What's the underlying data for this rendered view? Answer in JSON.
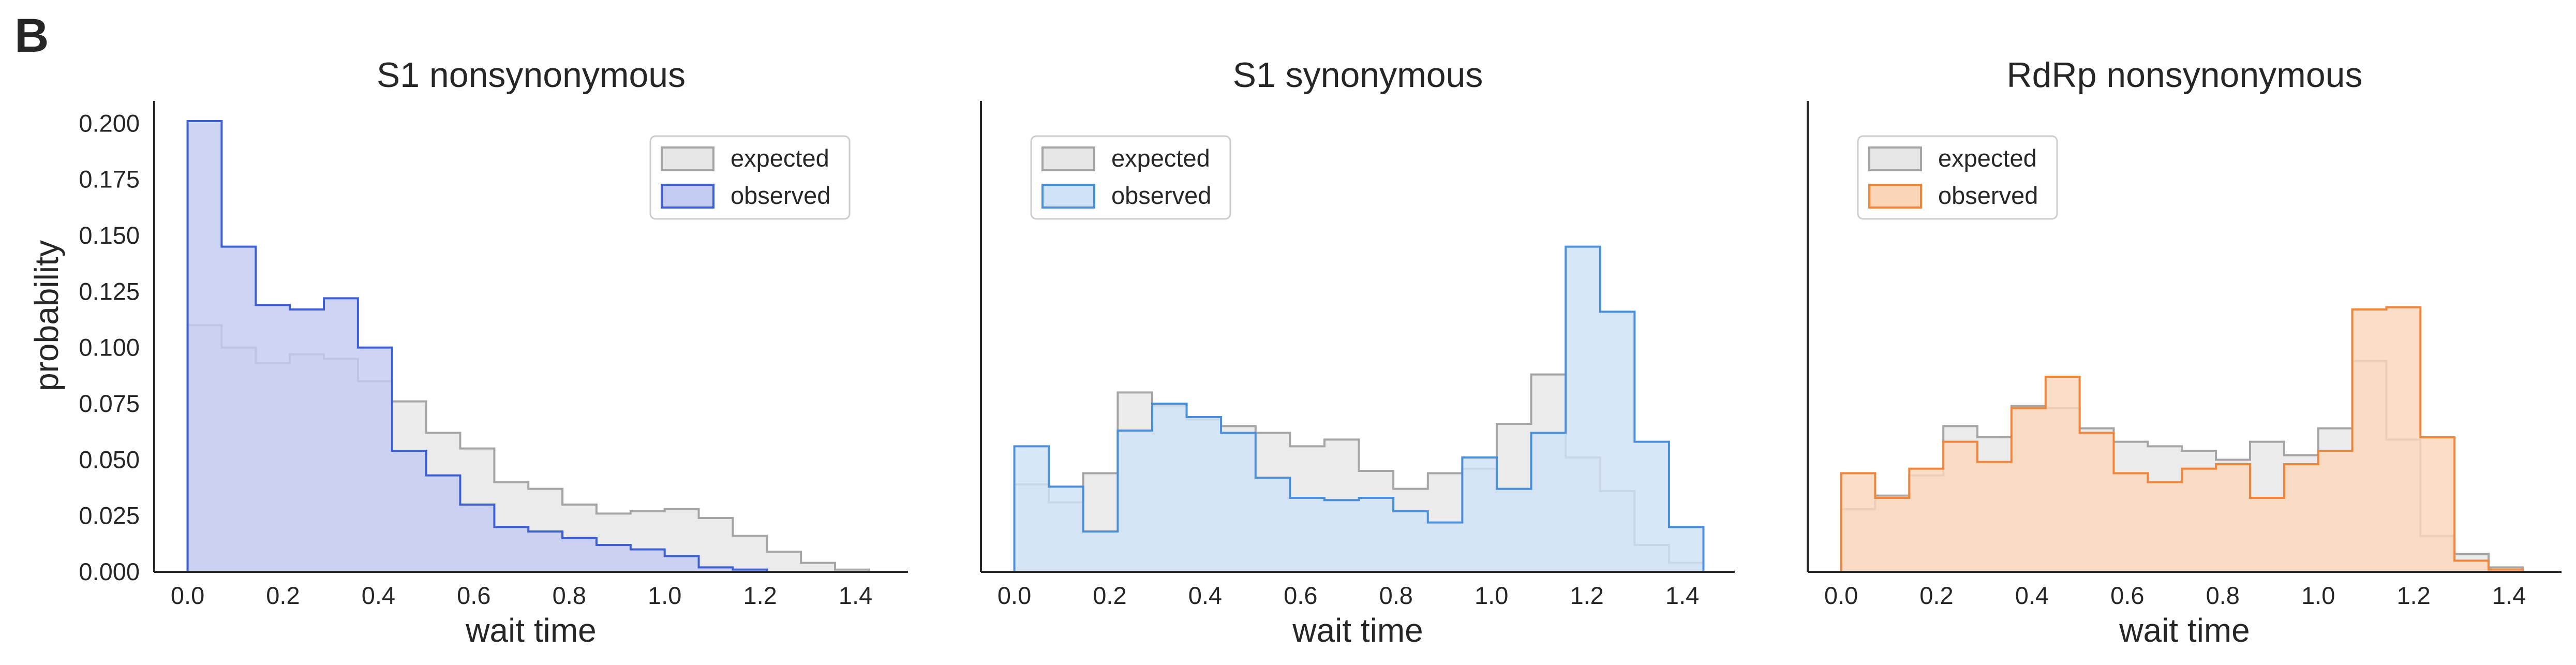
{
  "figure": {
    "panel_letter": "B",
    "ylabel": "probability",
    "colors": {
      "expected_fill": "#e6e6e6",
      "expected_edge": "#a5a5a5",
      "axis": "#262626",
      "text": "#262626"
    }
  },
  "chart_data": [
    {
      "type": "area",
      "title": "S1 nonsynonymous",
      "xlabel": "wait time",
      "ylabel": "probability",
      "xlim": [
        -0.07,
        1.51
      ],
      "ylim": [
        0,
        0.21
      ],
      "xticks": [
        0.0,
        0.2,
        0.4,
        0.6,
        0.8,
        1.0,
        1.2,
        1.4
      ],
      "xtick_labels": [
        "0.0",
        "0.2",
        "0.4",
        "0.6",
        "0.8",
        "1.0",
        "1.2",
        "1.4"
      ],
      "yticks": [
        0.0,
        0.025,
        0.05,
        0.075,
        0.1,
        0.125,
        0.15,
        0.175,
        0.2
      ],
      "ytick_labels": [
        "0.000",
        "0.025",
        "0.050",
        "0.075",
        "0.100",
        "0.125",
        "0.150",
        "0.175",
        "0.200"
      ],
      "show_yaxis": true,
      "grid": false,
      "legend": "top-right",
      "bin_edges": [
        0.0,
        0.0714,
        0.1429,
        0.2143,
        0.2857,
        0.3571,
        0.4286,
        0.5,
        0.5714,
        0.6429,
        0.7143,
        0.7857,
        0.8571,
        0.9286,
        1.0,
        1.0714,
        1.1429,
        1.2143,
        1.2857,
        1.3571,
        1.4286
      ],
      "series": [
        {
          "name": "expected",
          "fill": "#e6e6e6",
          "edge": "#a5a5a5",
          "values": [
            0.11,
            0.1,
            0.093,
            0.097,
            0.095,
            0.085,
            0.076,
            0.062,
            0.055,
            0.04,
            0.037,
            0.03,
            0.026,
            0.027,
            0.028,
            0.024,
            0.016,
            0.009,
            0.004,
            0.001
          ]
        },
        {
          "name": "observed",
          "fill": "#c3cbf0",
          "edge": "#3d5fd6",
          "values": [
            0.201,
            0.145,
            0.119,
            0.117,
            0.122,
            0.1,
            0.054,
            0.043,
            0.03,
            0.02,
            0.018,
            0.015,
            0.012,
            0.01,
            0.007,
            0.002,
            0.001,
            0.0,
            0.0,
            0.0
          ]
        }
      ]
    },
    {
      "type": "area",
      "title": "S1 synonymous",
      "xlabel": "wait time",
      "ylabel": "",
      "xlim": [
        -0.07,
        1.51
      ],
      "ylim": [
        0,
        0.21
      ],
      "xticks": [
        0.0,
        0.2,
        0.4,
        0.6,
        0.8,
        1.0,
        1.2,
        1.4
      ],
      "xtick_labels": [
        "0.0",
        "0.2",
        "0.4",
        "0.6",
        "0.8",
        "1.0",
        "1.2",
        "1.4"
      ],
      "yticks": [],
      "ytick_labels": [],
      "show_yaxis": false,
      "grid": false,
      "legend": "top-left",
      "bin_edges": [
        0.0,
        0.0722,
        0.1444,
        0.2167,
        0.2889,
        0.3611,
        0.4333,
        0.5056,
        0.5778,
        0.65,
        0.7222,
        0.7944,
        0.8667,
        0.9389,
        1.0111,
        1.0833,
        1.1556,
        1.2278,
        1.3,
        1.3722,
        1.4444
      ],
      "series": [
        {
          "name": "expected",
          "fill": "#e6e6e6",
          "edge": "#a5a5a5",
          "values": [
            0.039,
            0.031,
            0.044,
            0.08,
            0.074,
            0.068,
            0.065,
            0.062,
            0.056,
            0.059,
            0.045,
            0.037,
            0.044,
            0.046,
            0.066,
            0.088,
            0.051,
            0.036,
            0.012,
            0.004
          ]
        },
        {
          "name": "observed",
          "fill": "#cfe2f7",
          "edge": "#4a8fdb",
          "values": [
            0.056,
            0.038,
            0.018,
            0.063,
            0.075,
            0.069,
            0.062,
            0.042,
            0.033,
            0.032,
            0.033,
            0.027,
            0.022,
            0.051,
            0.037,
            0.062,
            0.145,
            0.116,
            0.058,
            0.02
          ]
        }
      ]
    },
    {
      "type": "area",
      "title": "RdRp nonsynonymous",
      "xlabel": "wait time",
      "ylabel": "",
      "xlim": [
        -0.07,
        1.51
      ],
      "ylim": [
        0,
        0.21
      ],
      "xticks": [
        0.0,
        0.2,
        0.4,
        0.6,
        0.8,
        1.0,
        1.2,
        1.4
      ],
      "xtick_labels": [
        "0.0",
        "0.2",
        "0.4",
        "0.6",
        "0.8",
        "1.0",
        "1.2",
        "1.4"
      ],
      "yticks": [],
      "ytick_labels": [],
      "show_yaxis": false,
      "grid": false,
      "legend": "top-left",
      "bin_edges": [
        0.0,
        0.0714,
        0.1429,
        0.2143,
        0.2857,
        0.3571,
        0.4286,
        0.5,
        0.5714,
        0.6429,
        0.7143,
        0.7857,
        0.8571,
        0.9286,
        1.0,
        1.0714,
        1.1429,
        1.2143,
        1.2857,
        1.3571,
        1.4286
      ],
      "series": [
        {
          "name": "expected",
          "fill": "#e6e6e6",
          "edge": "#a5a5a5",
          "values": [
            0.028,
            0.034,
            0.043,
            0.065,
            0.06,
            0.074,
            0.073,
            0.064,
            0.058,
            0.056,
            0.054,
            0.05,
            0.058,
            0.052,
            0.064,
            0.094,
            0.059,
            0.016,
            0.008,
            0.002
          ]
        },
        {
          "name": "observed",
          "fill": "#fbd5b8",
          "edge": "#f0853c",
          "values": [
            0.044,
            0.033,
            0.046,
            0.058,
            0.049,
            0.073,
            0.087,
            0.062,
            0.044,
            0.04,
            0.046,
            0.048,
            0.033,
            0.048,
            0.054,
            0.117,
            0.118,
            0.06,
            0.005,
            0.001
          ]
        }
      ]
    }
  ]
}
